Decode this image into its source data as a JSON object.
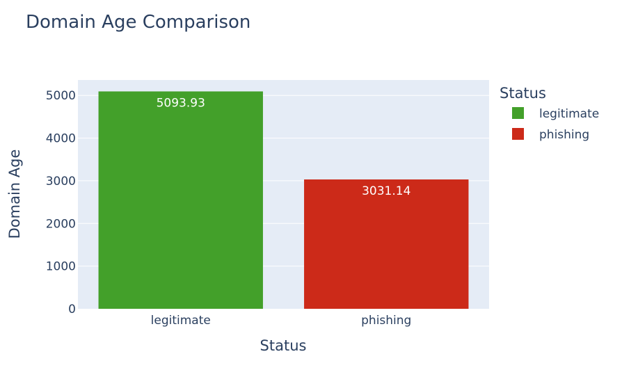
{
  "chart_data": {
    "type": "bar",
    "title": "Domain Age Comparison",
    "xlabel": "Status",
    "ylabel": "Domain Age",
    "categories": [
      "legitimate",
      "phishing"
    ],
    "values": [
      5093.93,
      3031.14
    ],
    "value_labels": [
      "5093.93",
      "3031.14"
    ],
    "colors": [
      "#43a02a",
      "#cc2a19"
    ],
    "ylim": [
      0,
      5362
    ],
    "yticks": [
      0,
      1000,
      2000,
      3000,
      4000,
      5000
    ],
    "grid": true,
    "plot_background": "#e5ecf6",
    "legend": {
      "title": "Status",
      "placement": "right",
      "entries": [
        "legitimate",
        "phishing"
      ]
    }
  }
}
